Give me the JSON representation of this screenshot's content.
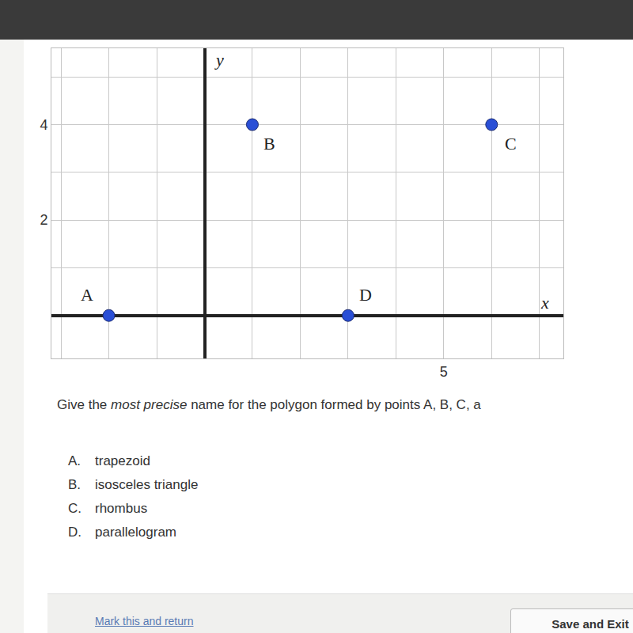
{
  "chart_data": {
    "type": "scatter",
    "x": [
      -2,
      1,
      6,
      3
    ],
    "values": [
      0,
      4,
      4,
      0
    ],
    "annotations": [
      {
        "text": "A",
        "x": -2,
        "y": 0
      },
      {
        "text": "B",
        "x": 1,
        "y": 4
      },
      {
        "text": "C",
        "x": 6,
        "y": 4
      },
      {
        "text": "D",
        "x": 3,
        "y": 0
      }
    ],
    "x_label": "x",
    "y_label": "y",
    "xlim": [
      -3.2,
      7.5
    ],
    "ylim": [
      -0.9,
      5.6
    ],
    "xticks": [
      5
    ],
    "yticks": [
      2,
      4
    ],
    "grid": true,
    "color": "#2a4fd6",
    "marker": "circle"
  },
  "question": {
    "prompt": [
      {
        "text": "Give the ",
        "italic": false
      },
      {
        "text": "most precise",
        "italic": true
      },
      {
        "text": " name for the polygon formed by points A, B, C, a",
        "italic": false
      }
    ],
    "options": [
      {
        "letter": "A.",
        "text": "trapezoid"
      },
      {
        "letter": "B.",
        "text": "isosceles triangle"
      },
      {
        "letter": "C.",
        "text": "rhombus"
      },
      {
        "letter": "D.",
        "text": "parallelogram"
      }
    ]
  },
  "footer": {
    "link": "Mark this and return",
    "button": "Save and Exit"
  }
}
